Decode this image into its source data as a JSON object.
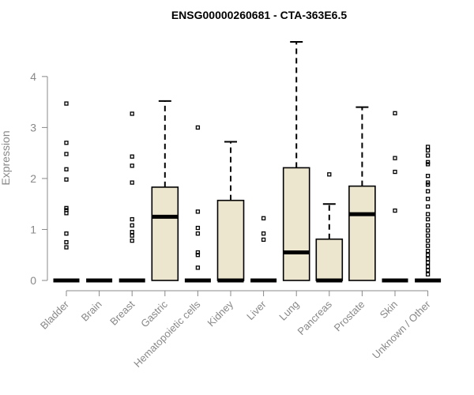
{
  "chart_data": {
    "type": "box",
    "title": "ENSG00000260681 - CTA-363E6.5",
    "ylabel": "Expression",
    "xlabel": "",
    "ylim": [
      0,
      4.85
    ],
    "yticks": [
      0,
      1,
      2,
      3,
      4
    ],
    "grid": false,
    "legend": "none",
    "box_fill": "#ede6cf",
    "categories": [
      "Bladder",
      "Brain",
      "Breast",
      "Gastric",
      "Hematopoietic cells",
      "Kidney",
      "Liver",
      "Lung",
      "Pancreas",
      "Prostate",
      "Skin",
      "Unknown / Other"
    ],
    "boxes": [
      {
        "q1": 0,
        "median": 0,
        "q3": 0,
        "whisker_low": 0,
        "whisker_high": 0,
        "outliers": [
          0.65,
          0.75,
          0.92,
          1.32,
          1.38,
          1.42,
          1.98,
          2.18,
          2.48,
          2.7,
          3.47
        ]
      },
      {
        "q1": 0,
        "median": 0,
        "q3": 0,
        "whisker_low": 0,
        "whisker_high": 0,
        "outliers": []
      },
      {
        "q1": 0,
        "median": 0,
        "q3": 0,
        "whisker_low": 0,
        "whisker_high": 0,
        "outliers": [
          0.78,
          0.88,
          0.95,
          1.08,
          1.2,
          1.92,
          2.25,
          2.43,
          3.27
        ]
      },
      {
        "q1": 0,
        "median": 1.25,
        "q3": 1.83,
        "whisker_low": 0,
        "whisker_high": 3.52,
        "outliers": []
      },
      {
        "q1": 0,
        "median": 0,
        "q3": 0,
        "whisker_low": 0,
        "whisker_high": 0,
        "outliers": [
          0.25,
          0.5,
          0.55,
          0.92,
          1.03,
          1.35,
          3.0
        ]
      },
      {
        "q1": 0,
        "median": 0,
        "q3": 1.57,
        "whisker_low": 0,
        "whisker_high": 2.72,
        "outliers": []
      },
      {
        "q1": 0,
        "median": 0,
        "q3": 0,
        "whisker_low": 0,
        "whisker_high": 0,
        "outliers": [
          0.8,
          0.92,
          1.22
        ]
      },
      {
        "q1": 0,
        "median": 0.55,
        "q3": 2.21,
        "whisker_low": 0,
        "whisker_high": 4.68,
        "outliers": []
      },
      {
        "q1": 0,
        "median": 0,
        "q3": 0.81,
        "whisker_low": 0,
        "whisker_high": 1.5,
        "outliers": [
          2.08
        ]
      },
      {
        "q1": 0,
        "median": 1.3,
        "q3": 1.85,
        "whisker_low": 0,
        "whisker_high": 3.4,
        "outliers": []
      },
      {
        "q1": 0,
        "median": 0,
        "q3": 0,
        "whisker_low": 0,
        "whisker_high": 0,
        "outliers": [
          1.37,
          2.13,
          2.4,
          3.28
        ]
      },
      {
        "q1": 0,
        "median": 0,
        "q3": 0,
        "whisker_low": 0,
        "whisker_high": 0,
        "outliers": [
          0.12,
          0.2,
          0.27,
          0.35,
          0.42,
          0.5,
          0.58,
          0.68,
          0.78,
          0.88,
          0.98,
          1.08,
          1.2,
          1.3,
          1.45,
          1.6,
          1.75,
          1.88,
          1.92,
          2.05,
          2.28,
          2.32,
          2.45,
          2.55,
          2.62
        ]
      }
    ]
  }
}
